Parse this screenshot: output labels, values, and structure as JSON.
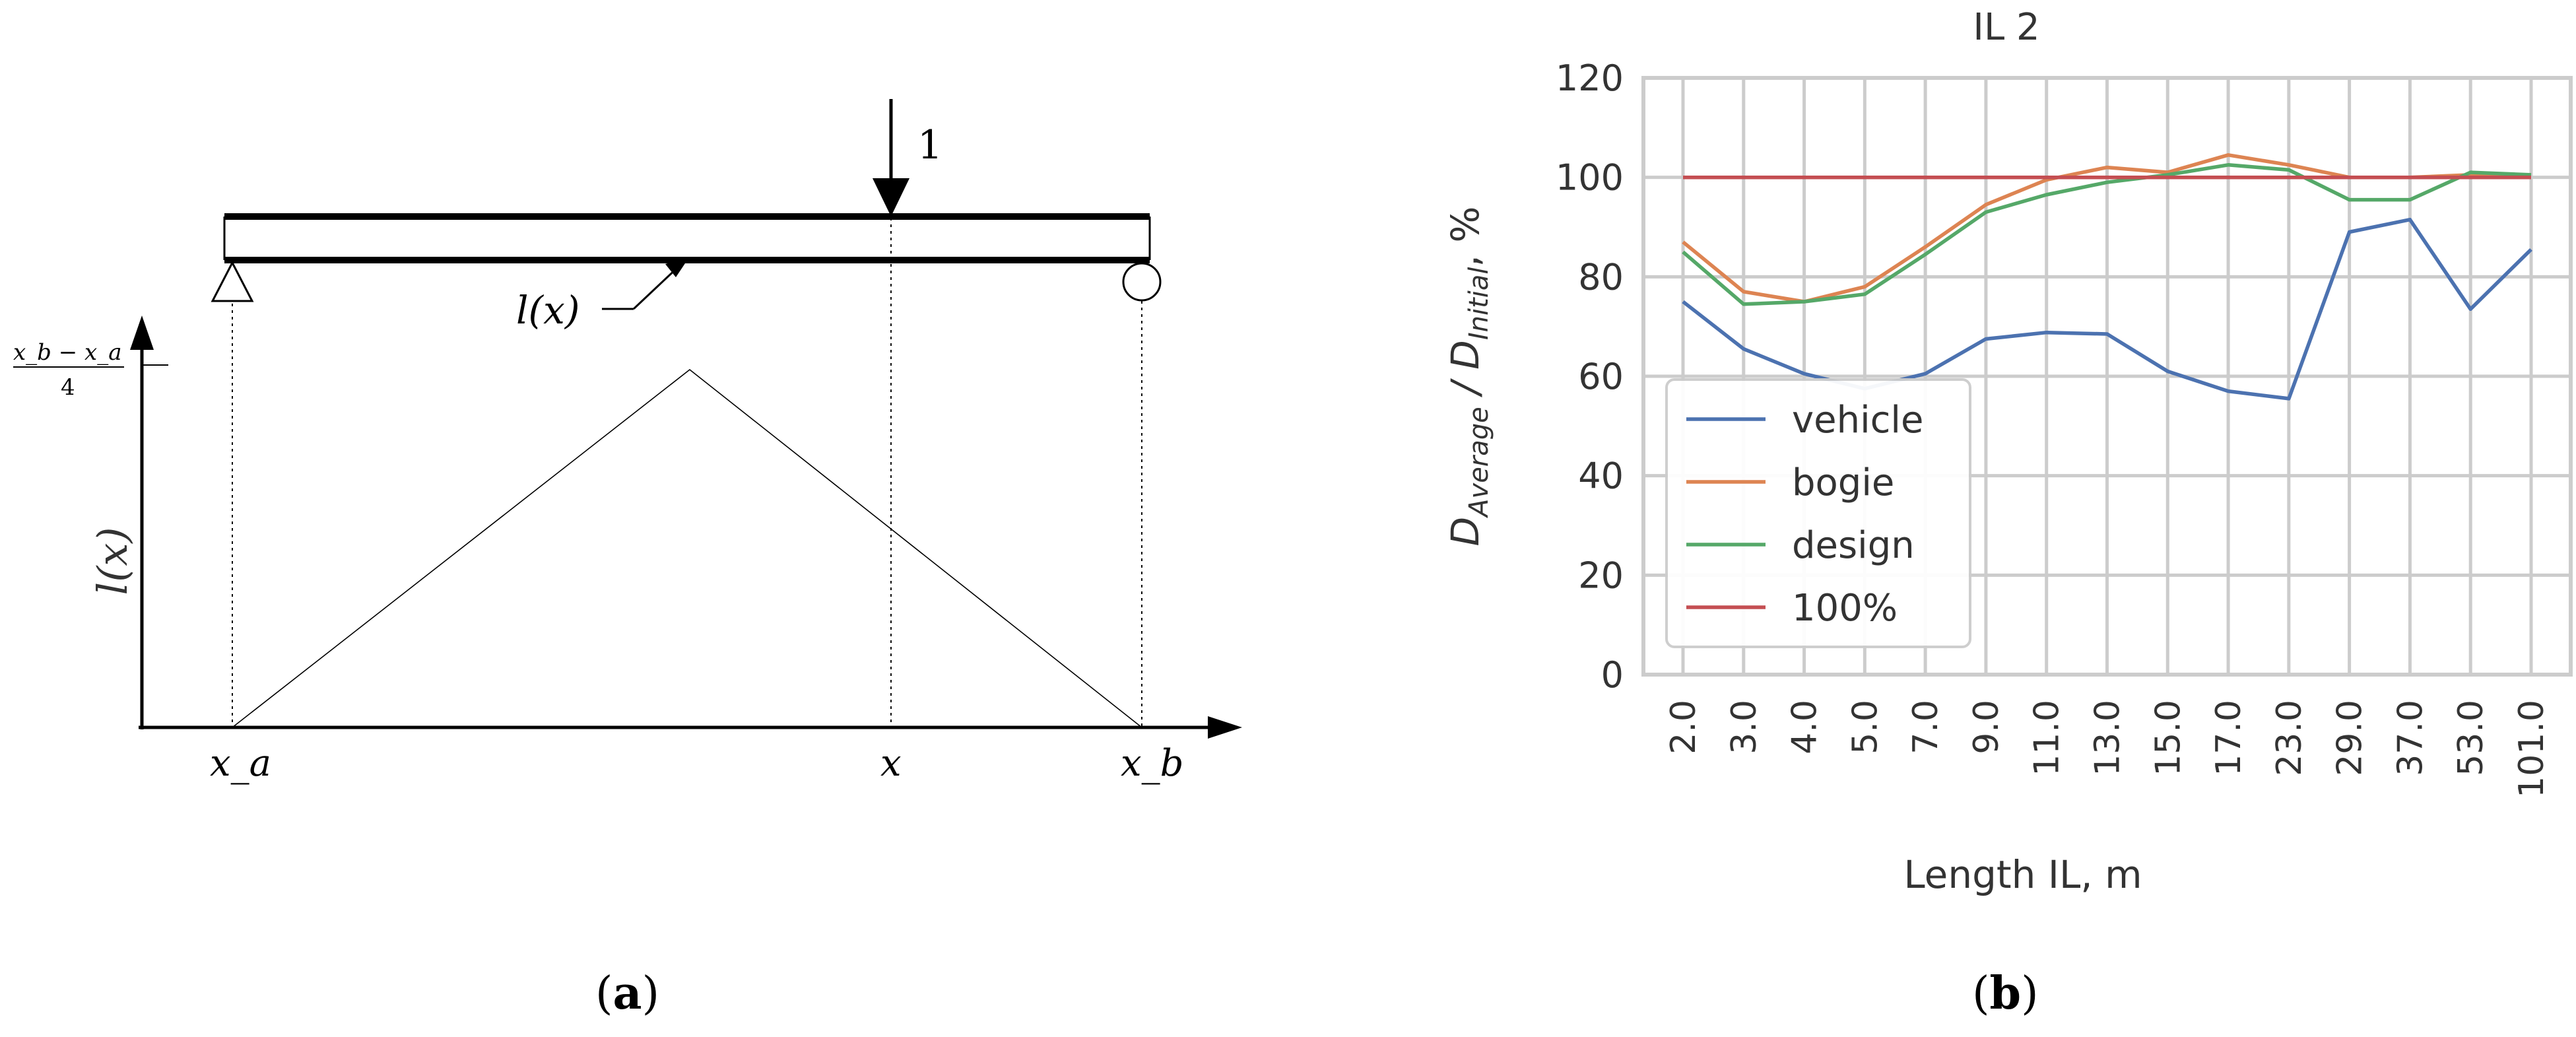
{
  "diagram_a": {
    "load_label": "1",
    "influence_label": "l(x)",
    "peak_fraction_num": "x_b − x_a",
    "peak_fraction_den": "4",
    "yaxis_label": "l(x)",
    "x_labels": {
      "xa": "x_a",
      "x": "x",
      "xb": "x_b"
    },
    "caption_open": "(",
    "caption_letter": "a",
    "caption_close": ")"
  },
  "chart_data": {
    "type": "line",
    "title": "IL 2",
    "xlabel": "Length IL, m",
    "ylabel": "D_Average / D_Initial, %",
    "categories": [
      "2.0",
      "3.0",
      "4.0",
      "5.0",
      "7.0",
      "9.0",
      "11.0",
      "13.0",
      "15.0",
      "17.0",
      "23.0",
      "29.0",
      "37.0",
      "53.0",
      "101.0"
    ],
    "ylim": [
      0,
      120
    ],
    "yticks": [
      0,
      20,
      40,
      60,
      80,
      100,
      120
    ],
    "grid": true,
    "legend_position": "lower-left",
    "series": [
      {
        "name": "vehicle",
        "color": "#4c72b0",
        "values": [
          75,
          65.5,
          60.5,
          57.5,
          60.5,
          67.5,
          68.8,
          68.5,
          61,
          57,
          55.5,
          89,
          91.5,
          73.5,
          85.5
        ]
      },
      {
        "name": "bogie",
        "color": "#dd8452",
        "values": [
          87,
          77,
          75,
          78,
          86,
          94.5,
          99.5,
          102,
          101,
          104.5,
          102.5,
          100,
          100,
          100.5,
          100.5
        ]
      },
      {
        "name": "design",
        "color": "#55a868",
        "values": [
          85,
          74.5,
          75,
          76.5,
          84.5,
          93,
          96.5,
          99,
          100.5,
          102.5,
          101.5,
          95.5,
          95.5,
          101,
          100.5
        ]
      },
      {
        "name": "100%",
        "color": "#c44e52",
        "values": [
          100,
          100,
          100,
          100,
          100,
          100,
          100,
          100,
          100,
          100,
          100,
          100,
          100,
          100,
          100
        ]
      }
    ]
  },
  "caption_b": {
    "open": "(",
    "letter": "b",
    "close": ")"
  }
}
